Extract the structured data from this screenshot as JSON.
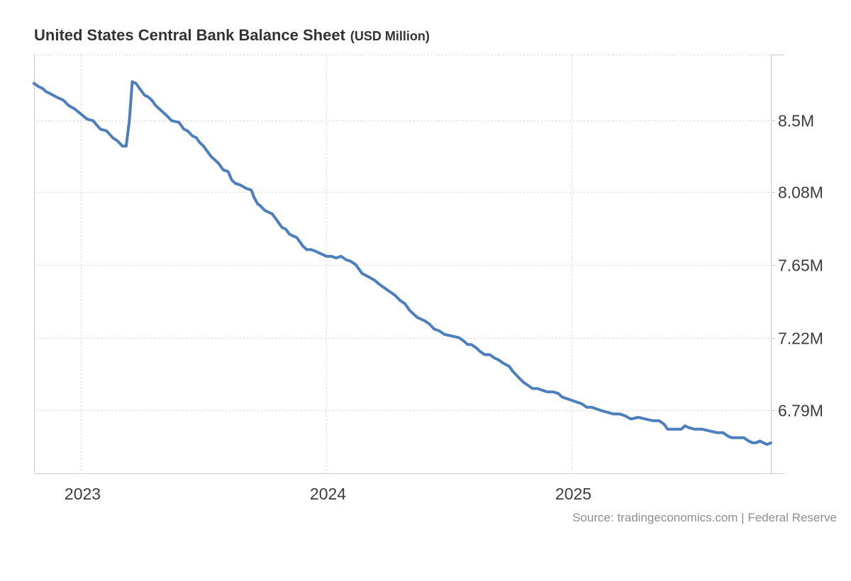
{
  "header": {
    "title": "United States Central Bank Balance Sheet",
    "unit_label": "(USD Million)"
  },
  "footer": {
    "source_text": "Source: tradingeconomics.com | Federal Reserve"
  },
  "colors": {
    "line": "#4D7EBE",
    "grid": "#DBDBDB",
    "axis": "#CBCBCB",
    "axis_text": "#3C3C3C",
    "title_text": "#333333",
    "source_text": "#8E8E8E",
    "background": "#FFFFFF"
  },
  "chart_data": {
    "type": "line",
    "title": "United States Central Bank Balance Sheet",
    "unit": "USD Million",
    "xlabel": "",
    "ylabel": "",
    "x_unit": "decimal_year",
    "x_range": [
      2022.81,
      2025.81
    ],
    "y_range": [
      6.42,
      8.89
    ],
    "grid": "dotted",
    "legend": "none",
    "y_ticks": [
      {
        "value": 8.5,
        "label": "8.5M"
      },
      {
        "value": 8.08,
        "label": "8.08M"
      },
      {
        "value": 7.65,
        "label": "7.65M"
      },
      {
        "value": 7.22,
        "label": "7.22M"
      },
      {
        "value": 6.79,
        "label": "6.79M"
      }
    ],
    "x_ticks": [
      {
        "value": 2023,
        "label": "2023"
      },
      {
        "value": 2024,
        "label": "2024"
      },
      {
        "value": 2025,
        "label": "2025"
      }
    ],
    "series": [
      {
        "name": "United States Central Bank Balance Sheet",
        "points": [
          [
            2022.81,
            8.72
          ],
          [
            2022.83,
            8.7
          ],
          [
            2022.845,
            8.69
          ],
          [
            2022.86,
            8.67
          ],
          [
            2022.875,
            8.66
          ],
          [
            2022.9,
            8.64
          ],
          [
            2022.93,
            8.62
          ],
          [
            2022.95,
            8.59
          ],
          [
            2022.975,
            8.57
          ],
          [
            2023.0,
            8.54
          ],
          [
            2023.025,
            8.51
          ],
          [
            2023.05,
            8.5
          ],
          [
            2023.08,
            8.45
          ],
          [
            2023.105,
            8.44
          ],
          [
            2023.13,
            8.4
          ],
          [
            2023.15,
            8.38
          ],
          [
            2023.17,
            8.35
          ],
          [
            2023.185,
            8.35
          ],
          [
            2023.198,
            8.5
          ],
          [
            2023.21,
            8.73
          ],
          [
            2023.225,
            8.72
          ],
          [
            2023.24,
            8.69
          ],
          [
            2023.26,
            8.65
          ],
          [
            2023.275,
            8.64
          ],
          [
            2023.29,
            8.62
          ],
          [
            2023.305,
            8.59
          ],
          [
            2023.32,
            8.57
          ],
          [
            2023.335,
            8.55
          ],
          [
            2023.35,
            8.53
          ],
          [
            2023.37,
            8.5
          ],
          [
            2023.4,
            8.49
          ],
          [
            2023.42,
            8.45
          ],
          [
            2023.435,
            8.44
          ],
          [
            2023.455,
            8.41
          ],
          [
            2023.47,
            8.4
          ],
          [
            2023.485,
            8.37
          ],
          [
            2023.5,
            8.35
          ],
          [
            2023.515,
            8.32
          ],
          [
            2023.53,
            8.29
          ],
          [
            2023.56,
            8.25
          ],
          [
            2023.58,
            8.21
          ],
          [
            2023.6,
            8.2
          ],
          [
            2023.615,
            8.15
          ],
          [
            2023.63,
            8.13
          ],
          [
            2023.65,
            8.12
          ],
          [
            2023.675,
            8.1
          ],
          [
            2023.695,
            8.09
          ],
          [
            2023.705,
            8.05
          ],
          [
            2023.72,
            8.01
          ],
          [
            2023.73,
            8.0
          ],
          [
            2023.75,
            7.97
          ],
          [
            2023.765,
            7.96
          ],
          [
            2023.78,
            7.95
          ],
          [
            2023.8,
            7.91
          ],
          [
            2023.81,
            7.89
          ],
          [
            2023.82,
            7.87
          ],
          [
            2023.835,
            7.86
          ],
          [
            2023.85,
            7.83
          ],
          [
            2023.865,
            7.82
          ],
          [
            2023.88,
            7.81
          ],
          [
            2023.89,
            7.79
          ],
          [
            2023.905,
            7.76
          ],
          [
            2023.92,
            7.74
          ],
          [
            2023.937,
            7.74
          ],
          [
            2023.957,
            7.73
          ],
          [
            2023.97,
            7.72
          ],
          [
            2023.986,
            7.71
          ],
          [
            2024.0,
            7.7
          ],
          [
            2024.02,
            7.7
          ],
          [
            2024.04,
            7.69
          ],
          [
            2024.06,
            7.7
          ],
          [
            2024.08,
            7.68
          ],
          [
            2024.1,
            7.67
          ],
          [
            2024.12,
            7.65
          ],
          [
            2024.145,
            7.6
          ],
          [
            2024.17,
            7.58
          ],
          [
            2024.195,
            7.56
          ],
          [
            2024.22,
            7.53
          ],
          [
            2024.24,
            7.51
          ],
          [
            2024.26,
            7.49
          ],
          [
            2024.28,
            7.47
          ],
          [
            2024.3,
            7.44
          ],
          [
            2024.32,
            7.42
          ],
          [
            2024.34,
            7.38
          ],
          [
            2024.37,
            7.34
          ],
          [
            2024.4,
            7.32
          ],
          [
            2024.42,
            7.3
          ],
          [
            2024.44,
            7.27
          ],
          [
            2024.46,
            7.26
          ],
          [
            2024.48,
            7.24
          ],
          [
            2024.51,
            7.23
          ],
          [
            2024.54,
            7.22
          ],
          [
            2024.56,
            7.2
          ],
          [
            2024.575,
            7.18
          ],
          [
            2024.59,
            7.18
          ],
          [
            2024.61,
            7.16
          ],
          [
            2024.625,
            7.14
          ],
          [
            2024.645,
            7.12
          ],
          [
            2024.665,
            7.12
          ],
          [
            2024.685,
            7.1
          ],
          [
            2024.7,
            7.09
          ],
          [
            2024.72,
            7.07
          ],
          [
            2024.745,
            7.05
          ],
          [
            2024.76,
            7.02
          ],
          [
            2024.78,
            6.99
          ],
          [
            2024.8,
            6.96
          ],
          [
            2024.82,
            6.94
          ],
          [
            2024.84,
            6.92
          ],
          [
            2024.86,
            6.92
          ],
          [
            2024.88,
            6.91
          ],
          [
            2024.9,
            6.9
          ],
          [
            2024.925,
            6.9
          ],
          [
            2024.945,
            6.89
          ],
          [
            2024.96,
            6.87
          ],
          [
            2024.98,
            6.86
          ],
          [
            2025.0,
            6.85
          ],
          [
            2025.02,
            6.84
          ],
          [
            2025.04,
            6.83
          ],
          [
            2025.06,
            6.81
          ],
          [
            2025.08,
            6.81
          ],
          [
            2025.1,
            6.8
          ],
          [
            2025.12,
            6.79
          ],
          [
            2025.145,
            6.78
          ],
          [
            2025.17,
            6.77
          ],
          [
            2025.195,
            6.77
          ],
          [
            2025.215,
            6.76
          ],
          [
            2025.24,
            6.74
          ],
          [
            2025.27,
            6.75
          ],
          [
            2025.3,
            6.74
          ],
          [
            2025.33,
            6.73
          ],
          [
            2025.355,
            6.73
          ],
          [
            2025.375,
            6.71
          ],
          [
            2025.39,
            6.68
          ],
          [
            2025.42,
            6.68
          ],
          [
            2025.445,
            6.68
          ],
          [
            2025.46,
            6.7
          ],
          [
            2025.475,
            6.69
          ],
          [
            2025.5,
            6.68
          ],
          [
            2025.53,
            6.68
          ],
          [
            2025.56,
            6.67
          ],
          [
            2025.59,
            6.66
          ],
          [
            2025.615,
            6.66
          ],
          [
            2025.635,
            6.64
          ],
          [
            2025.65,
            6.63
          ],
          [
            2025.68,
            6.63
          ],
          [
            2025.7,
            6.63
          ],
          [
            2025.72,
            6.61
          ],
          [
            2025.735,
            6.6
          ],
          [
            2025.75,
            6.6
          ],
          [
            2025.765,
            6.61
          ],
          [
            2025.78,
            6.6
          ],
          [
            2025.795,
            6.59
          ],
          [
            2025.81,
            6.6
          ]
        ]
      }
    ]
  }
}
